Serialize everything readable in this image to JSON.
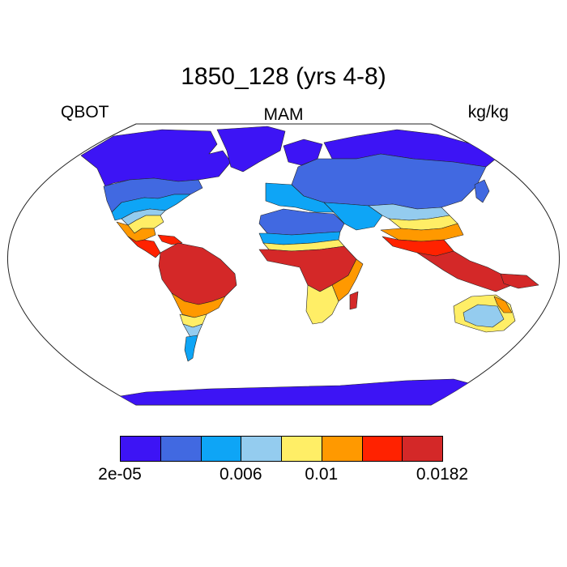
{
  "title": "1850_128 (yrs 4-8)",
  "left_label": "QBOT",
  "center_label": "MAM",
  "right_label": "kg/kg",
  "palette": {
    "c1": "#3d14f5",
    "c2": "#4169e1",
    "c3": "#0ea5f6",
    "c4": "#94ccef",
    "c5": "#ffee66",
    "c6": "#ff9900",
    "c7": "#ff2200",
    "c8": "#d42828"
  },
  "colorbar": {
    "colors": [
      "#3d14f5",
      "#4169e1",
      "#0ea5f6",
      "#94ccef",
      "#ffee66",
      "#ff9900",
      "#ff2200",
      "#d42828"
    ],
    "labels": [
      {
        "text": "2e-05",
        "boundary": 0
      },
      {
        "text": "0.006",
        "boundary": 3
      },
      {
        "text": "0.01",
        "boundary": 5
      },
      {
        "text": "0.0182",
        "boundary": 8
      }
    ]
  }
}
